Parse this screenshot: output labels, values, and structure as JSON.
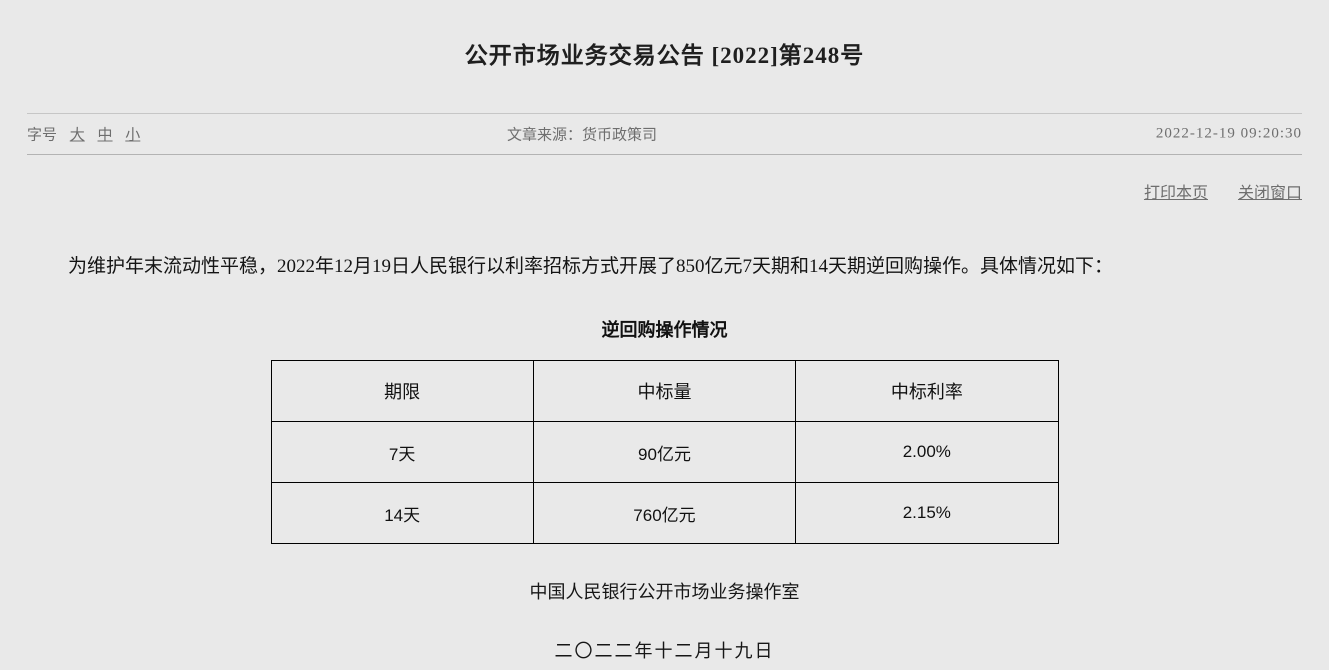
{
  "page": {
    "title": "公开市场业务交易公告 [2022]第248号"
  },
  "meta": {
    "font_size_label": "字号",
    "font_size_options": {
      "large": "大",
      "medium": "中",
      "small": "小"
    },
    "source_label": "文章来源：",
    "source_value": "货币政策司",
    "timestamp": "2022-12-19 09:20:30"
  },
  "actions": {
    "print_label": "打印本页",
    "close_label": "关闭窗口"
  },
  "article": {
    "paragraph": "为维护年末流动性平稳，2022年12月19日人民银行以利率招标方式开展了850亿元7天期和14天期逆回购操作。具体情况如下：",
    "table_title": "逆回购操作情况",
    "signature": "中国人民银行公开市场业务操作室",
    "date": "二〇二二年十二月十九日"
  },
  "table": {
    "headers": [
      "期限",
      "中标量",
      "中标利率"
    ],
    "rows": [
      [
        "7天",
        "90亿元",
        "2.00%"
      ],
      [
        "14天",
        "760亿元",
        "2.15%"
      ]
    ]
  },
  "colors": {
    "background": "#e9e9e9",
    "body_text": "#1c1c1c",
    "meta_text": "#6e6e6e",
    "divider": "#b3b3b3",
    "table_border": "#000000"
  }
}
